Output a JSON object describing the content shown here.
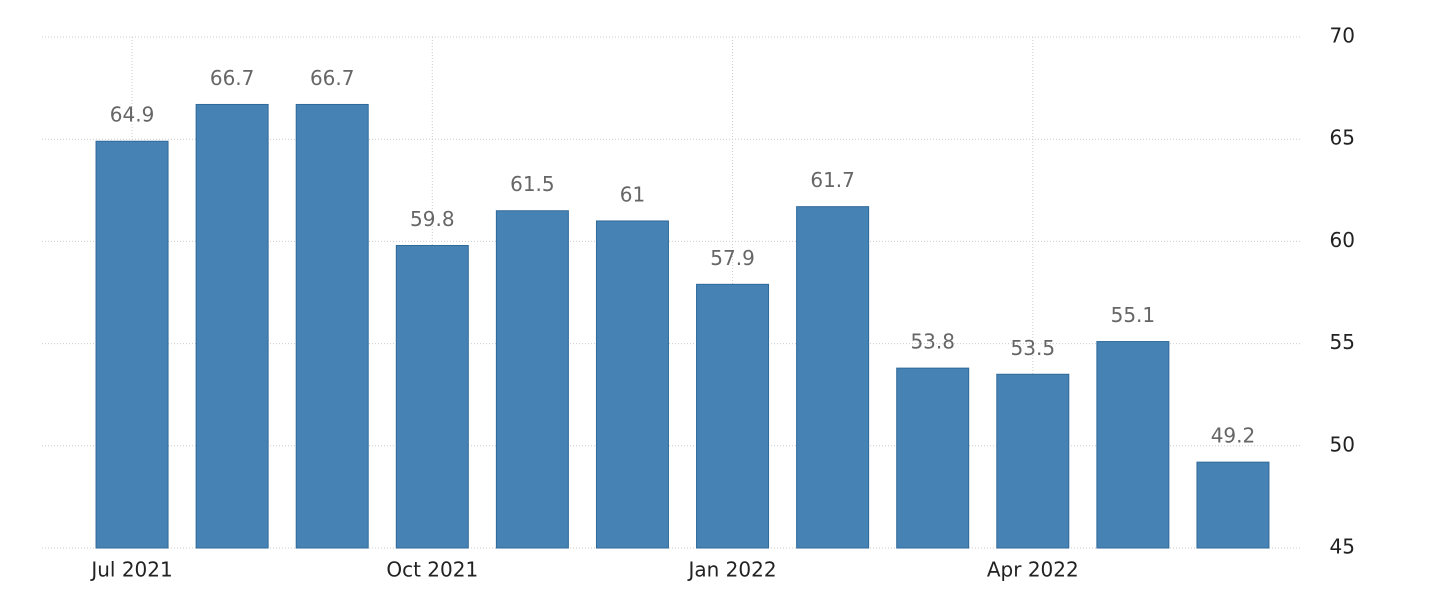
{
  "chart_data": {
    "type": "bar",
    "categories": [
      "Jul 2021",
      null,
      null,
      "Oct 2021",
      null,
      null,
      "Jan 2022",
      null,
      null,
      "Apr 2022",
      null,
      null
    ],
    "values": [
      64.9,
      66.7,
      66.7,
      59.8,
      61.5,
      61,
      57.9,
      61.7,
      53.8,
      53.5,
      55.1,
      49.2
    ],
    "color": "#4682b4",
    "ylim": [
      45,
      70
    ],
    "yticks": [
      45,
      50,
      55,
      60,
      65,
      70
    ],
    "grid": true
  }
}
